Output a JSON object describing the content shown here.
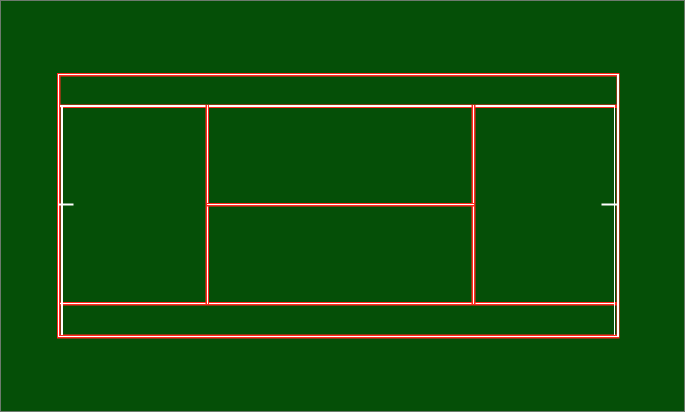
{
  "scene": {
    "colors": {
      "grass": "#054f07",
      "line": "#ffffff",
      "line_edge": "#ff2a1f",
      "frame": "#6d7a6d"
    }
  }
}
